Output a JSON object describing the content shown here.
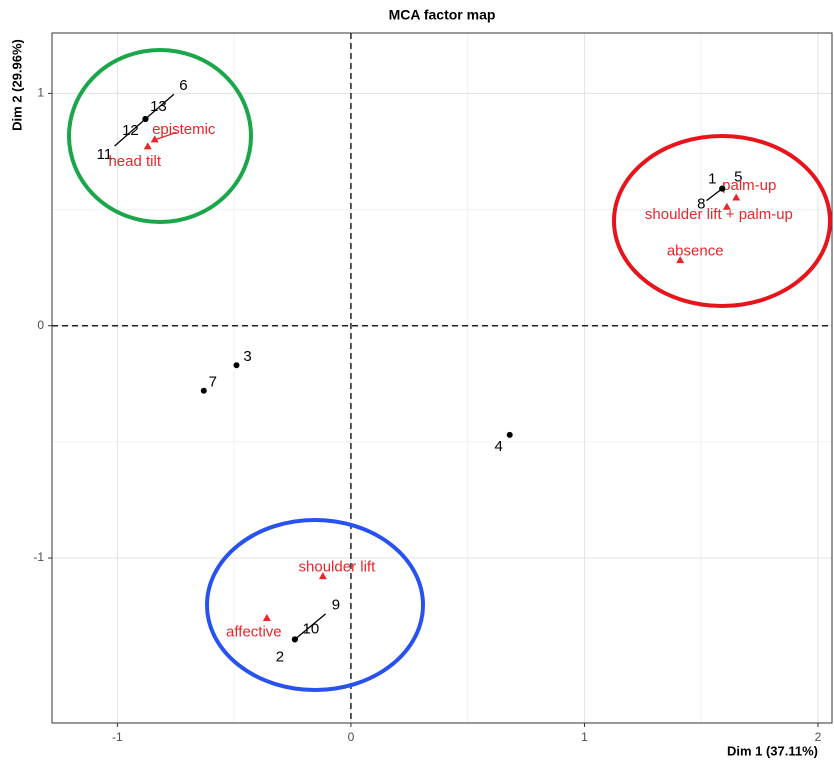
{
  "chart_data": {
    "type": "scatter",
    "title": "MCA factor map",
    "x_label": "Dim 1 (37.11%)",
    "y_label": "Dim 2 (29.96%)",
    "xlim": [
      -1.28,
      2.06
    ],
    "ylim": [
      -1.71,
      1.26
    ],
    "xticks": [
      -1,
      0,
      1,
      2
    ],
    "yticks": [
      -1,
      0,
      1
    ],
    "grid": true,
    "individuals": {
      "color": "#000000",
      "points": [
        {
          "label": "6",
          "x": -0.88,
          "y": 0.89
        },
        {
          "label": "13",
          "x": -0.88,
          "y": 0.89
        },
        {
          "label": "12",
          "x": -0.88,
          "y": 0.89
        },
        {
          "label": "11",
          "x": -0.88,
          "y": 0.89
        },
        {
          "label": "1",
          "x": 1.59,
          "y": 0.59
        },
        {
          "label": "5",
          "x": 1.59,
          "y": 0.59
        },
        {
          "label": "8",
          "x": 1.59,
          "y": 0.59
        },
        {
          "label": "3",
          "x": -0.49,
          "y": -0.17
        },
        {
          "label": "7",
          "x": -0.63,
          "y": -0.28
        },
        {
          "label": "4",
          "x": 0.68,
          "y": -0.47
        },
        {
          "label": "9",
          "x": -0.24,
          "y": -1.35
        },
        {
          "label": "10",
          "x": -0.24,
          "y": -1.35
        },
        {
          "label": "2",
          "x": -0.24,
          "y": -1.35
        }
      ]
    },
    "modalities": {
      "color": "#e8262a",
      "points": [
        {
          "label": "epistemic",
          "x": -0.84,
          "y": 0.8
        },
        {
          "label": "head tilt",
          "x": -0.87,
          "y": 0.77
        },
        {
          "label": "palm-up",
          "x": 1.65,
          "y": 0.55
        },
        {
          "label": "shoulder lift + palm-up",
          "x": 1.61,
          "y": 0.51
        },
        {
          "label": "absence",
          "x": 1.41,
          "y": 0.28
        },
        {
          "label": "shoulder lift",
          "x": -0.12,
          "y": -1.08
        },
        {
          "label": "affective",
          "x": -0.36,
          "y": -1.26
        }
      ]
    }
  }
}
